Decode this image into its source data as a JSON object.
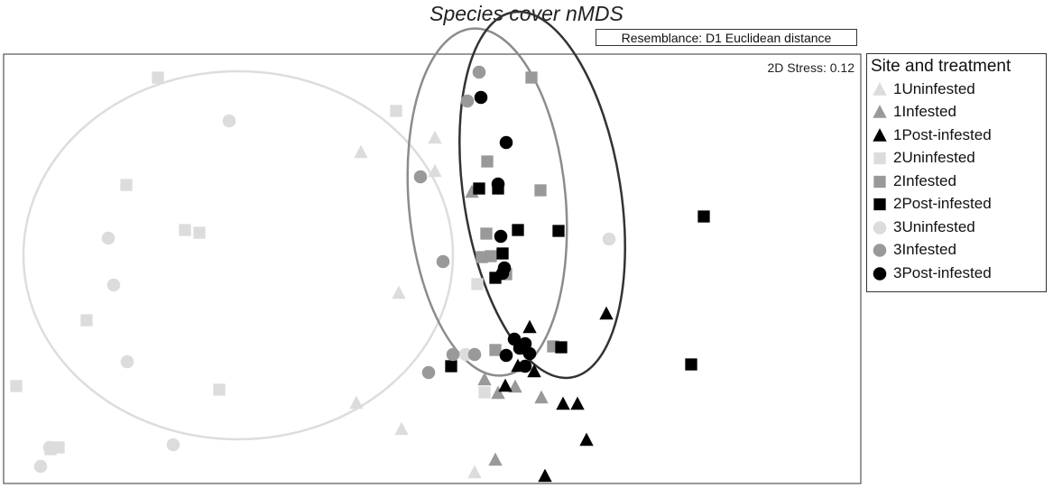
{
  "chart_data": {
    "type": "scatter",
    "title": "Species cover nMDS",
    "resemblance_label": "Resemblance: D1 Euclidean distance",
    "stress_label": "2D Stress: 0.12",
    "legend_title": "Site and treatment",
    "legend_placement": "right",
    "xlim": [
      0,
      940
    ],
    "ylim": [
      0,
      470
    ],
    "grid": false,
    "colors": {
      "Uninfested": "#dcdcdc",
      "Infested": "#999999",
      "Post-infested": "#000000"
    },
    "series": [
      {
        "name": "1Uninfested",
        "site": 1,
        "treatment": "Uninfested",
        "marker": "triangle",
        "points": [
          [
            396,
            367
          ],
          [
            478,
            383
          ],
          [
            478,
            346
          ],
          [
            438,
            211
          ],
          [
            391,
            89
          ],
          [
            441,
            60
          ],
          [
            522,
            12
          ]
        ]
      },
      {
        "name": "1Infested",
        "site": 1,
        "treatment": "Infested",
        "marker": "triangle",
        "points": [
          [
            519,
            323
          ],
          [
            533,
            115
          ],
          [
            548,
            100
          ],
          [
            567,
            107
          ],
          [
            596,
            95
          ],
          [
            545,
            26
          ]
        ]
      },
      {
        "name": "1Post-infested",
        "site": 1,
        "treatment": "Post-infested",
        "marker": "triangle",
        "points": [
          [
            583,
            173
          ],
          [
            668,
            188
          ],
          [
            570,
            130
          ],
          [
            588,
            124
          ],
          [
            556,
            108
          ],
          [
            620,
            88
          ],
          [
            636,
            88
          ],
          [
            646,
            48
          ],
          [
            600,
            8
          ]
        ]
      },
      {
        "name": "2Uninfested",
        "site": 2,
        "treatment": "Uninfested",
        "marker": "square",
        "points": [
          [
            171,
            450
          ],
          [
            435,
            413
          ],
          [
            136,
            331
          ],
          [
            201,
            281
          ],
          [
            217,
            278
          ],
          [
            92,
            181
          ],
          [
            14,
            108
          ],
          [
            239,
            104
          ],
          [
            61,
            40
          ],
          [
            52,
            38
          ],
          [
            525,
            221
          ],
          [
            533,
            101
          ]
        ]
      },
      {
        "name": "2Infested",
        "site": 2,
        "treatment": "Infested",
        "marker": "square",
        "points": [
          [
            585,
            450
          ],
          [
            536,
            357
          ],
          [
            595,
            325
          ],
          [
            535,
            277
          ],
          [
            540,
            252
          ],
          [
            530,
            251
          ],
          [
            557,
            232
          ],
          [
            545,
            148
          ],
          [
            609,
            152
          ]
        ]
      },
      {
        "name": "2Post-infested",
        "site": 2,
        "treatment": "Post-infested",
        "marker": "square",
        "points": [
          [
            776,
            296
          ],
          [
            527,
            327
          ],
          [
            548,
            327
          ],
          [
            570,
            281
          ],
          [
            615,
            280
          ],
          [
            553,
            255
          ],
          [
            545,
            228
          ],
          [
            496,
            130
          ],
          [
            574,
            151
          ],
          [
            618,
            151
          ],
          [
            762,
            132
          ]
        ]
      },
      {
        "name": "3Uninfested",
        "site": 3,
        "treatment": "Uninfested",
        "marker": "circle",
        "points": [
          [
            250,
            402
          ],
          [
            116,
            272
          ],
          [
            122,
            220
          ],
          [
            137,
            135
          ],
          [
            188,
            43
          ],
          [
            51,
            40
          ],
          [
            41,
            19
          ],
          [
            671,
            271
          ],
          [
            512,
            143
          ]
        ]
      },
      {
        "name": "3Infested",
        "site": 3,
        "treatment": "Infested",
        "marker": "circle",
        "points": [
          [
            527,
            456
          ],
          [
            514,
            424
          ],
          [
            462,
            340
          ],
          [
            487,
            246
          ],
          [
            498,
            143
          ],
          [
            522,
            143
          ],
          [
            471,
            123
          ]
        ]
      },
      {
        "name": "3Post-infested",
        "site": 3,
        "treatment": "Post-infested",
        "marker": "circle",
        "points": [
          [
            529,
            428
          ],
          [
            557,
            378
          ],
          [
            548,
            332
          ],
          [
            551,
            274
          ],
          [
            555,
            239
          ],
          [
            553,
            233
          ],
          [
            566,
            160
          ],
          [
            578,
            155
          ],
          [
            583,
            144
          ],
          [
            557,
            142
          ],
          [
            578,
            130
          ],
          [
            572,
            150
          ]
        ]
      }
    ],
    "ellipses": [
      {
        "group": "Uninfested",
        "cx": 260,
        "cy": 253,
        "rx": 238,
        "ry": 204,
        "rotation_deg": 0
      },
      {
        "group": "Infested",
        "cx": 536,
        "cy": 312,
        "rx": 87,
        "ry": 193,
        "rotation_deg": -5
      },
      {
        "group": "Post-infested",
        "cx": 597,
        "cy": 320,
        "rx": 87,
        "ry": 205,
        "rotation_deg": -9
      }
    ]
  }
}
